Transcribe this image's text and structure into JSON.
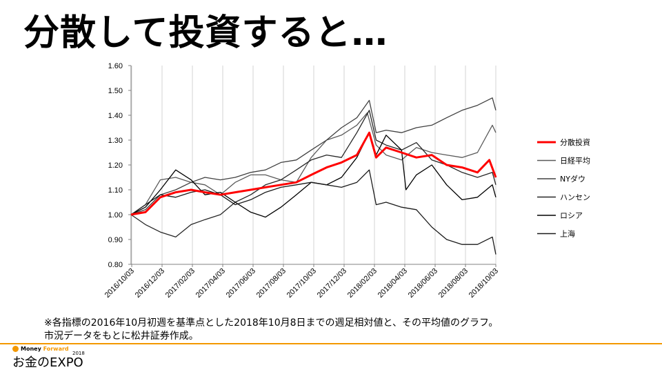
{
  "slide": {
    "title": "分散して投資すると…",
    "note_line1": "※各指標の2016年10月初週を基準点とした2018年10月8日までの週足相対値と、その平均値のグラフ。",
    "note_line2": "市況データをもとに松井証券作成。"
  },
  "logo": {
    "brand_a": "Money",
    "brand_b": "Forward",
    "year": "2018",
    "event": "お金のEXPO",
    "accent": "#f39800"
  },
  "chart_data": {
    "type": "line",
    "title": "",
    "xlabel": "",
    "ylabel": "",
    "ylim": [
      0.8,
      1.6
    ],
    "yticks": [
      "0.80",
      "0.90",
      "1.00",
      "1.10",
      "1.20",
      "1.30",
      "1.40",
      "1.50",
      "1.60"
    ],
    "xticks": [
      "2016/10/03",
      "2016/12/03",
      "2017/02/03",
      "2017/04/03",
      "2017/06/03",
      "2017/08/03",
      "2017/10/03",
      "2017/12/03",
      "2018/02/03",
      "2018/04/03",
      "2018/06/03",
      "2018/08/03",
      "2018/10/03"
    ],
    "xlim": [
      "2016-10-03",
      "2018-10-08"
    ],
    "grid": "vertical",
    "legend_position": "right",
    "series": [
      {
        "name": "分散投資",
        "color": "#ff0000",
        "width": 3,
        "x": [
          "2016-10-03",
          "2016-11-01",
          "2016-12-01",
          "2017-01-01",
          "2017-02-01",
          "2017-03-01",
          "2017-04-01",
          "2017-05-01",
          "2017-06-01",
          "2017-07-01",
          "2017-08-01",
          "2017-09-01",
          "2017-10-01",
          "2017-11-01",
          "2017-12-01",
          "2018-01-01",
          "2018-01-26",
          "2018-02-09",
          "2018-03-01",
          "2018-04-01",
          "2018-05-01",
          "2018-06-01",
          "2018-07-01",
          "2018-08-01",
          "2018-09-01",
          "2018-09-25",
          "2018-10-08"
        ],
        "values": [
          1.0,
          1.01,
          1.07,
          1.09,
          1.1,
          1.09,
          1.08,
          1.09,
          1.1,
          1.11,
          1.12,
          1.13,
          1.16,
          1.19,
          1.21,
          1.24,
          1.33,
          1.23,
          1.27,
          1.25,
          1.23,
          1.24,
          1.2,
          1.19,
          1.17,
          1.22,
          1.15
        ]
      },
      {
        "name": "日経平均",
        "color": "#595959",
        "width": 1.3,
        "x": [
          "2016-10-03",
          "2016-11-01",
          "2016-12-01",
          "2017-01-01",
          "2017-02-01",
          "2017-03-01",
          "2017-04-01",
          "2017-05-01",
          "2017-06-01",
          "2017-07-01",
          "2017-08-01",
          "2017-09-01",
          "2017-10-01",
          "2017-11-01",
          "2017-12-01",
          "2018-01-01",
          "2018-01-22",
          "2018-02-09",
          "2018-03-01",
          "2018-04-01",
          "2018-05-01",
          "2018-06-01",
          "2018-07-01",
          "2018-08-01",
          "2018-09-01",
          "2018-10-01",
          "2018-10-08"
        ],
        "values": [
          1.0,
          1.04,
          1.14,
          1.15,
          1.13,
          1.12,
          1.08,
          1.13,
          1.16,
          1.16,
          1.14,
          1.13,
          1.23,
          1.3,
          1.32,
          1.36,
          1.41,
          1.28,
          1.24,
          1.22,
          1.27,
          1.25,
          1.24,
          1.23,
          1.25,
          1.36,
          1.33
        ]
      },
      {
        "name": "NYダウ",
        "color": "#404040",
        "width": 1.3,
        "x": [
          "2016-10-03",
          "2016-11-01",
          "2016-12-01",
          "2017-01-01",
          "2017-02-01",
          "2017-03-01",
          "2017-04-01",
          "2017-05-01",
          "2017-06-01",
          "2017-07-01",
          "2017-08-01",
          "2017-09-01",
          "2017-10-01",
          "2017-11-01",
          "2017-12-01",
          "2018-01-01",
          "2018-01-26",
          "2018-02-09",
          "2018-03-01",
          "2018-04-01",
          "2018-05-01",
          "2018-06-01",
          "2018-07-01",
          "2018-08-01",
          "2018-09-01",
          "2018-10-01",
          "2018-10-08"
        ],
        "values": [
          1.0,
          1.02,
          1.08,
          1.1,
          1.13,
          1.15,
          1.14,
          1.15,
          1.17,
          1.18,
          1.21,
          1.22,
          1.26,
          1.3,
          1.35,
          1.39,
          1.46,
          1.33,
          1.34,
          1.33,
          1.35,
          1.36,
          1.39,
          1.42,
          1.44,
          1.47,
          1.42
        ]
      },
      {
        "name": "ハンセン",
        "color": "#262626",
        "width": 1.3,
        "x": [
          "2016-10-03",
          "2016-11-01",
          "2016-12-01",
          "2017-01-01",
          "2017-02-01",
          "2017-03-01",
          "2017-04-01",
          "2017-05-01",
          "2017-06-01",
          "2017-07-01",
          "2017-08-01",
          "2017-09-01",
          "2017-10-01",
          "2017-11-01",
          "2017-12-01",
          "2018-01-01",
          "2018-01-26",
          "2018-02-09",
          "2018-03-01",
          "2018-04-01",
          "2018-05-01",
          "2018-06-01",
          "2018-07-01",
          "2018-08-01",
          "2018-09-01",
          "2018-10-01",
          "2018-10-08"
        ],
        "values": [
          1.0,
          0.96,
          0.93,
          0.91,
          0.96,
          0.98,
          1.0,
          1.05,
          1.08,
          1.12,
          1.14,
          1.18,
          1.22,
          1.24,
          1.23,
          1.33,
          1.42,
          1.3,
          1.28,
          1.26,
          1.29,
          1.22,
          1.2,
          1.17,
          1.15,
          1.17,
          1.12
        ]
      },
      {
        "name": "ロシア",
        "color": "#000000",
        "width": 1.3,
        "x": [
          "2016-10-03",
          "2016-11-01",
          "2016-12-01",
          "2017-01-01",
          "2017-02-01",
          "2017-03-01",
          "2017-04-01",
          "2017-05-01",
          "2017-06-01",
          "2017-07-01",
          "2017-08-01",
          "2017-09-01",
          "2017-10-01",
          "2017-11-01",
          "2017-12-01",
          "2018-01-01",
          "2018-01-26",
          "2018-02-09",
          "2018-03-01",
          "2018-04-01",
          "2018-04-10",
          "2018-05-01",
          "2018-06-01",
          "2018-07-01",
          "2018-08-01",
          "2018-09-01",
          "2018-10-01",
          "2018-10-08"
        ],
        "values": [
          1.0,
          1.03,
          1.1,
          1.18,
          1.14,
          1.08,
          1.09,
          1.05,
          1.01,
          0.99,
          1.03,
          1.08,
          1.13,
          1.12,
          1.15,
          1.23,
          1.33,
          1.24,
          1.32,
          1.26,
          1.1,
          1.16,
          1.2,
          1.12,
          1.06,
          1.07,
          1.12,
          1.07
        ]
      },
      {
        "name": "上海",
        "color": "#1a1a1a",
        "width": 1.3,
        "x": [
          "2016-10-03",
          "2016-11-01",
          "2016-12-01",
          "2017-01-01",
          "2017-02-01",
          "2017-03-01",
          "2017-04-01",
          "2017-05-01",
          "2017-06-01",
          "2017-07-01",
          "2017-08-01",
          "2017-09-01",
          "2017-10-01",
          "2017-11-01",
          "2017-12-01",
          "2018-01-01",
          "2018-01-26",
          "2018-02-09",
          "2018-03-01",
          "2018-04-01",
          "2018-05-01",
          "2018-06-01",
          "2018-07-01",
          "2018-08-01",
          "2018-09-01",
          "2018-10-01",
          "2018-10-08"
        ],
        "values": [
          1.0,
          1.04,
          1.08,
          1.07,
          1.09,
          1.1,
          1.08,
          1.04,
          1.06,
          1.09,
          1.11,
          1.12,
          1.13,
          1.12,
          1.11,
          1.13,
          1.18,
          1.04,
          1.05,
          1.03,
          1.02,
          0.95,
          0.9,
          0.88,
          0.88,
          0.91,
          0.84
        ]
      }
    ]
  }
}
